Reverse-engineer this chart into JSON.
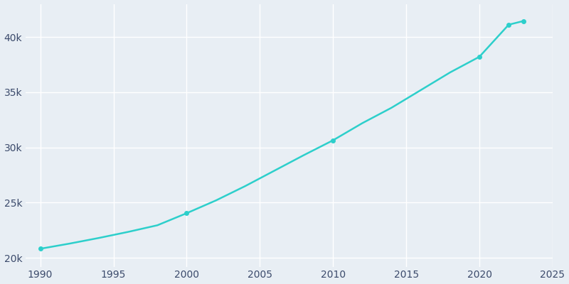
{
  "years": [
    1990,
    1992,
    1994,
    1996,
    1998,
    2000,
    2002,
    2004,
    2006,
    2008,
    2010,
    2012,
    2014,
    2016,
    2018,
    2020,
    2022,
    2023
  ],
  "population": [
    20823,
    21290,
    21800,
    22350,
    22950,
    24043,
    25200,
    26500,
    27900,
    29300,
    30648,
    32200,
    33600,
    35200,
    36800,
    38216,
    41120,
    41452
  ],
  "line_color": "#2DCFCB",
  "marker_years": [
    1990,
    2000,
    2010,
    2020,
    2022,
    2023
  ],
  "marker_populations": [
    20823,
    24043,
    30648,
    38216,
    41120,
    41452
  ],
  "marker_color": "#2DCFCB",
  "background_color": "#E8EEF4",
  "grid_color": "#FFFFFF",
  "tick_label_color": "#3B4A6B",
  "xlim": [
    1989,
    2025
  ],
  "ylim": [
    19200,
    43000
  ],
  "xticks": [
    1990,
    1995,
    2000,
    2005,
    2010,
    2015,
    2020,
    2025
  ],
  "ytick_values": [
    20000,
    25000,
    30000,
    35000,
    40000
  ],
  "ytick_labels": [
    "20k",
    "25k",
    "30k",
    "35k",
    "40k"
  ],
  "marker_size": 4,
  "line_width": 1.8
}
